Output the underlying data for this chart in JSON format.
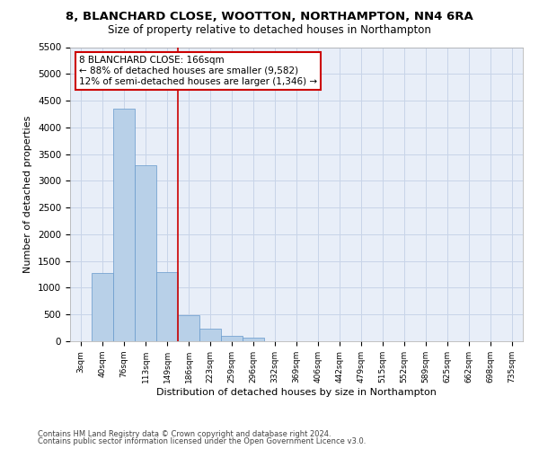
{
  "title_line1": "8, BLANCHARD CLOSE, WOOTTON, NORTHAMPTON, NN4 6RA",
  "title_line2": "Size of property relative to detached houses in Northampton",
  "xlabel": "Distribution of detached houses by size in Northampton",
  "ylabel": "Number of detached properties",
  "categories": [
    "3sqm",
    "40sqm",
    "76sqm",
    "113sqm",
    "149sqm",
    "186sqm",
    "223sqm",
    "259sqm",
    "296sqm",
    "332sqm",
    "369sqm",
    "406sqm",
    "442sqm",
    "479sqm",
    "515sqm",
    "552sqm",
    "589sqm",
    "625sqm",
    "662sqm",
    "698sqm",
    "735sqm"
  ],
  "bar_heights": [
    0,
    1270,
    4350,
    3300,
    1300,
    480,
    230,
    100,
    70,
    0,
    0,
    0,
    0,
    0,
    0,
    0,
    0,
    0,
    0,
    0,
    0
  ],
  "bar_color": "#b8d0e8",
  "bar_edge_color": "#6699cc",
  "vline_x_index": 4.5,
  "vline_color": "#cc0000",
  "annotation_text_line1": "8 BLANCHARD CLOSE: 166sqm",
  "annotation_text_line2": "← 88% of detached houses are smaller (9,582)",
  "annotation_text_line3": "12% of semi-detached houses are larger (1,346) →",
  "annotation_box_color": "#ffffff",
  "annotation_box_edge": "#cc0000",
  "ylim": [
    0,
    5500
  ],
  "yticks": [
    0,
    500,
    1000,
    1500,
    2000,
    2500,
    3000,
    3500,
    4000,
    4500,
    5000,
    5500
  ],
  "grid_color": "#c8d4e8",
  "background_color": "#e8eef8",
  "footer_line1": "Contains HM Land Registry data © Crown copyright and database right 2024.",
  "footer_line2": "Contains public sector information licensed under the Open Government Licence v3.0."
}
